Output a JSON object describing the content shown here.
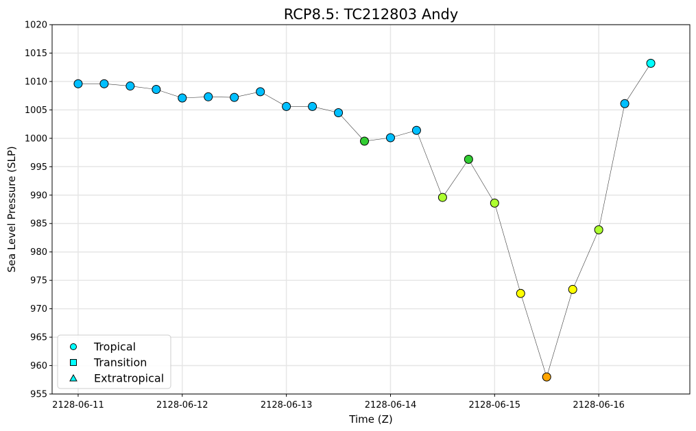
{
  "chart_data": {
    "type": "scatter",
    "title": "RCP8.5: TC212803 Andy",
    "xlabel": "Time (Z)",
    "ylabel": "Sea Level Pressure (SLP)",
    "ylim": [
      955,
      1020
    ],
    "yticks": [
      955,
      960,
      965,
      970,
      975,
      980,
      985,
      990,
      995,
      1000,
      1005,
      1010,
      1015,
      1020
    ],
    "xticks": [
      "2128-06-11",
      "2128-06-12",
      "2128-06-13",
      "2128-06-14",
      "2128-06-15",
      "2128-06-16"
    ],
    "xlim": [
      "2128-06-10T18:00",
      "2128-06-16T21:00"
    ],
    "grid": true,
    "legend": {
      "placement": "lower-left",
      "entries": [
        {
          "label": "Tropical",
          "marker": "circle"
        },
        {
          "label": "Transition",
          "marker": "square"
        },
        {
          "label": "Extratropical",
          "marker": "triangle"
        }
      ]
    },
    "series": [
      {
        "points": [
          {
            "x": "2128-06-11T00:00",
            "y": 1009.6,
            "color": "#00bfff"
          },
          {
            "x": "2128-06-11T06:00",
            "y": 1009.6,
            "color": "#00bfff"
          },
          {
            "x": "2128-06-11T12:00",
            "y": 1009.2,
            "color": "#00bfff"
          },
          {
            "x": "2128-06-11T18:00",
            "y": 1008.6,
            "color": "#00bfff"
          },
          {
            "x": "2128-06-12T00:00",
            "y": 1007.1,
            "color": "#00bfff"
          },
          {
            "x": "2128-06-12T06:00",
            "y": 1007.3,
            "color": "#00bfff"
          },
          {
            "x": "2128-06-12T12:00",
            "y": 1007.2,
            "color": "#00bfff"
          },
          {
            "x": "2128-06-12T18:00",
            "y": 1008.2,
            "color": "#00bfff"
          },
          {
            "x": "2128-06-13T00:00",
            "y": 1005.6,
            "color": "#00bfff"
          },
          {
            "x": "2128-06-13T06:00",
            "y": 1005.6,
            "color": "#00bfff"
          },
          {
            "x": "2128-06-13T12:00",
            "y": 1004.5,
            "color": "#00bfff"
          },
          {
            "x": "2128-06-13T18:00",
            "y": 999.5,
            "color": "#32cd32"
          },
          {
            "x": "2128-06-14T00:00",
            "y": 1000.1,
            "color": "#00bfff"
          },
          {
            "x": "2128-06-14T06:00",
            "y": 1001.4,
            "color": "#00bfff"
          },
          {
            "x": "2128-06-14T12:00",
            "y": 989.6,
            "color": "#adff2f"
          },
          {
            "x": "2128-06-14T18:00",
            "y": 996.3,
            "color": "#32cd32"
          },
          {
            "x": "2128-06-15T00:00",
            "y": 988.6,
            "color": "#adff2f"
          },
          {
            "x": "2128-06-15T06:00",
            "y": 972.7,
            "color": "#ffff00"
          },
          {
            "x": "2128-06-15T12:00",
            "y": 958.0,
            "color": "#ffa500"
          },
          {
            "x": "2128-06-15T18:00",
            "y": 973.4,
            "color": "#ffff00"
          },
          {
            "x": "2128-06-16T00:00",
            "y": 983.9,
            "color": "#adff2f"
          },
          {
            "x": "2128-06-16T06:00",
            "y": 1006.1,
            "color": "#00bfff"
          },
          {
            "x": "2128-06-16T12:00",
            "y": 1013.2,
            "color": "#00ffff"
          }
        ]
      }
    ]
  }
}
